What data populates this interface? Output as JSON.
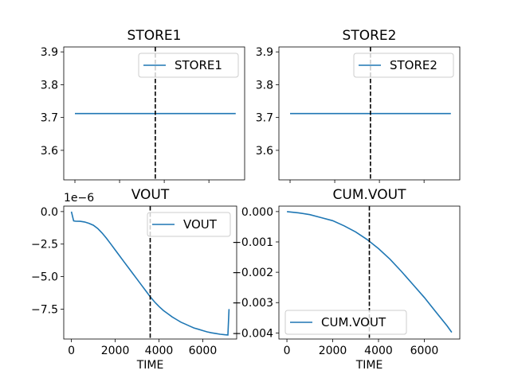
{
  "chart_data": [
    {
      "type": "line",
      "title": "STORE1",
      "xlabel": "",
      "ylabel": "",
      "xlim": [
        -500,
        7600
      ],
      "ylim": [
        3.51,
        3.915
      ],
      "x_ticks": [
        0,
        2000,
        4000,
        6000
      ],
      "x_tick_labels_shown": false,
      "y_ticks": [
        3.6,
        3.7,
        3.8,
        3.9
      ],
      "y_tick_labels": [
        "3.6",
        "3.7",
        "3.8",
        "3.9"
      ],
      "vline": 3600,
      "legend": "top-right",
      "series": [
        {
          "name": "STORE1",
          "color": "#1f77b4",
          "x": [
            0,
            7200
          ],
          "y": [
            3.712,
            3.712
          ]
        }
      ]
    },
    {
      "type": "line",
      "title": "STORE2",
      "xlabel": "",
      "ylabel": "",
      "xlim": [
        -500,
        7600
      ],
      "ylim": [
        3.51,
        3.915
      ],
      "x_ticks": [
        0,
        2000,
        4000,
        6000
      ],
      "x_tick_labels_shown": false,
      "y_ticks": [
        3.6,
        3.7,
        3.8,
        3.9
      ],
      "y_tick_labels": [
        "3.6",
        "3.7",
        "3.8",
        "3.9"
      ],
      "vline": 3600,
      "legend": "top-right",
      "series": [
        {
          "name": "STORE2",
          "color": "#1f77b4",
          "x": [
            0,
            7200
          ],
          "y": [
            3.712,
            3.712
          ]
        }
      ]
    },
    {
      "type": "line",
      "title": "VOUT",
      "xlabel": "TIME",
      "ylabel": "",
      "offset_text": "1e−6",
      "xlim": [
        -350,
        7550
      ],
      "ylim": [
        -9.8,
        0.42
      ],
      "x_ticks": [
        0,
        2000,
        4000,
        6000
      ],
      "x_tick_labels": [
        "0",
        "2000",
        "4000",
        "6000"
      ],
      "y_ticks": [
        0,
        -2.5,
        -5.0,
        -7.5
      ],
      "y_tick_labels": [
        "0.0",
        "−2.5",
        "−5.0",
        "−7.5"
      ],
      "vline": 3600,
      "legend": "top-right",
      "series": [
        {
          "name": "VOUT",
          "color": "#1f77b4",
          "x": [
            0,
            100,
            200,
            400,
            600,
            800,
            1000,
            1200,
            1400,
            1600,
            1800,
            2000,
            2200,
            2400,
            2600,
            2800,
            3000,
            3200,
            3400,
            3600,
            3800,
            4000,
            4200,
            4400,
            4600,
            4800,
            5000,
            5200,
            5400,
            5600,
            5800,
            6000,
            6200,
            6400,
            6600,
            6800,
            7000,
            7100,
            7150,
            7200
          ],
          "y": [
            0.0,
            -0.72,
            -0.74,
            -0.75,
            -0.8,
            -0.9,
            -1.05,
            -1.3,
            -1.65,
            -2.05,
            -2.5,
            -2.95,
            -3.4,
            -3.85,
            -4.3,
            -4.75,
            -5.2,
            -5.65,
            -6.1,
            -6.55,
            -6.95,
            -7.3,
            -7.6,
            -7.85,
            -8.1,
            -8.3,
            -8.5,
            -8.65,
            -8.8,
            -8.95,
            -9.05,
            -9.15,
            -9.25,
            -9.32,
            -9.38,
            -9.43,
            -9.47,
            -9.48,
            -9.49,
            -7.5
          ]
        }
      ]
    },
    {
      "type": "line",
      "title": "CUM.VOUT",
      "xlabel": "TIME",
      "ylabel": "",
      "xlim": [
        -350,
        7550
      ],
      "ylim": [
        -0.0042,
        0.00018
      ],
      "x_ticks": [
        0,
        2000,
        4000,
        6000
      ],
      "x_tick_labels": [
        "0",
        "2000",
        "4000",
        "6000"
      ],
      "y_ticks": [
        0.0,
        -0.001,
        -0.002,
        -0.003,
        -0.004
      ],
      "y_tick_labels": [
        "0.000",
        "−0.001",
        "−0.002",
        "−0.003",
        "−0.004"
      ],
      "vline": 3600,
      "legend": "bottom-left",
      "series": [
        {
          "name": "CUM.VOUT",
          "color": "#1f77b4",
          "x": [
            0,
            500,
            1000,
            1500,
            2000,
            2500,
            3000,
            3500,
            4000,
            4500,
            5000,
            5500,
            6000,
            6500,
            7000,
            7200
          ],
          "y": [
            0.0,
            -4e-05,
            -0.0001,
            -0.0002,
            -0.0003,
            -0.00047,
            -0.00067,
            -0.00092,
            -0.00122,
            -0.00157,
            -0.00197,
            -0.0024,
            -0.00283,
            -0.0033,
            -0.00377,
            -0.00398
          ]
        }
      ]
    }
  ]
}
